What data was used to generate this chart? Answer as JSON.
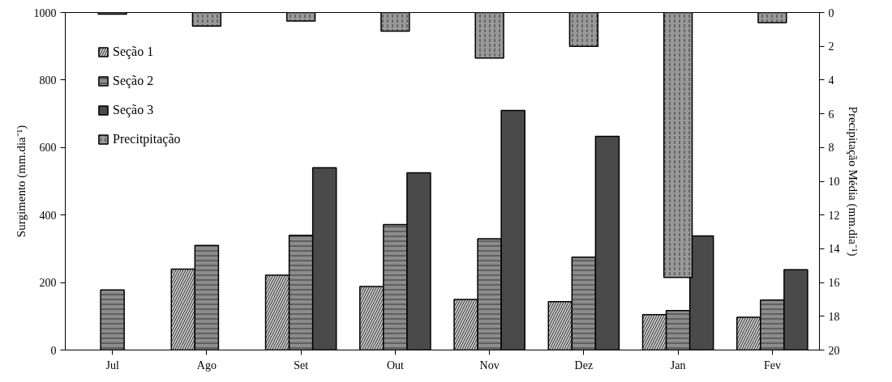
{
  "chart_data": {
    "type": "bar",
    "categories": [
      "Jul",
      "Ago",
      "Set",
      "Out",
      "Nov",
      "Dez",
      "Jan",
      "Fev"
    ],
    "ylabel": "Surgimento (mm.dia⁻¹)",
    "y2label": "Precipitação Média (mm.dia⁻¹)",
    "ylim": [
      0,
      1000
    ],
    "yticks": [
      0,
      200,
      400,
      600,
      800,
      1000
    ],
    "y2lim": [
      20,
      0
    ],
    "y2ticks": [
      0,
      2,
      4,
      6,
      8,
      10,
      12,
      14,
      16,
      18,
      20
    ],
    "grid": false,
    "legend": "top left",
    "series": [
      {
        "name": "Seção 1",
        "color": "#c8c8c8",
        "values": [
          null,
          240,
          222,
          188,
          150,
          143,
          105,
          97
        ]
      },
      {
        "name": "Seção 2",
        "color": "#8c8c8c",
        "values": [
          178,
          310,
          340,
          372,
          330,
          275,
          117,
          148
        ]
      },
      {
        "name": "Seção 3",
        "color": "#4a4a4a",
        "values": [
          null,
          null,
          540,
          525,
          710,
          633,
          338,
          238
        ]
      },
      {
        "name": "Precitpitação",
        "color": "#999999",
        "axis": "y2",
        "values": [
          0.1,
          0.8,
          0.5,
          1.1,
          2.7,
          2.0,
          15.7,
          0.6
        ]
      }
    ]
  }
}
